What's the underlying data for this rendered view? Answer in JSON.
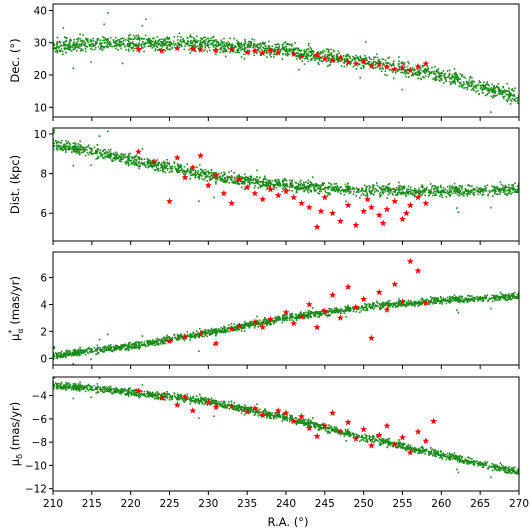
{
  "chart_data": [
    {
      "type": "scatter",
      "ylabel": "Dec. (°)",
      "ylim": [
        7,
        42
      ],
      "yticks": [
        10,
        20,
        30,
        40
      ],
      "xlim": [
        210,
        270
      ],
      "band": {
        "x": [
          210,
          220,
          230,
          240,
          250,
          260,
          270
        ],
        "y": [
          29,
          30,
          29.5,
          27.5,
          24,
          20,
          13
        ],
        "spread": 1.6
      },
      "stars": {
        "x": [
          221,
          224,
          226,
          228,
          229,
          231,
          233,
          235,
          236,
          237,
          238,
          239,
          241,
          242,
          244,
          245,
          246,
          247,
          248,
          249,
          250,
          251,
          252,
          253,
          254,
          255,
          256,
          257,
          258
        ],
        "y": [
          28,
          27.5,
          28.3,
          28,
          27.8,
          27.6,
          27.9,
          27,
          27.4,
          26.8,
          27.5,
          26.9,
          26.5,
          25.8,
          26.2,
          25,
          24.5,
          25.3,
          24,
          23.5,
          24.2,
          22.8,
          23.4,
          22.5,
          21.8,
          22.2,
          21.5,
          22.6,
          23.5
        ]
      }
    },
    {
      "type": "scatter",
      "ylabel": "Dist. (kpc)",
      "ylim": [
        4.6,
        10.3
      ],
      "yticks": [
        6,
        8,
        10
      ],
      "xlim": [
        210,
        270
      ],
      "band": {
        "x": [
          210,
          220,
          230,
          240,
          250,
          260,
          270
        ],
        "y": [
          9.5,
          8.7,
          7.9,
          7.4,
          7.15,
          7.1,
          7.2
        ],
        "spread": 0.2
      },
      "stars": {
        "x": [
          221,
          223,
          225,
          226,
          227,
          228,
          229,
          230,
          231,
          232,
          233,
          234,
          235,
          236,
          237,
          238,
          239,
          240,
          241,
          242,
          243,
          244,
          244.5,
          245,
          246,
          247,
          248,
          249,
          250,
          250.5,
          251,
          252,
          252.5,
          253,
          254,
          255,
          255.5,
          256,
          257,
          258
        ],
        "y": [
          9.1,
          8.6,
          6.6,
          8.8,
          7.8,
          8.3,
          8.9,
          7.4,
          7.9,
          7.0,
          6.5,
          7.7,
          7.3,
          7.0,
          6.7,
          7.2,
          6.9,
          7.1,
          6.8,
          6.5,
          6.3,
          5.3,
          6.1,
          6.8,
          6.0,
          5.6,
          6.4,
          5.4,
          6.1,
          6.7,
          6.3,
          5.9,
          5.5,
          6.2,
          6.6,
          5.7,
          6.0,
          6.4,
          6.8,
          6.5
        ]
      }
    },
    {
      "type": "scatter",
      "ylabel": "μ*α (mas/yr)",
      "ylabel_main": "μ",
      "ylabel_sub": "α",
      "ylabel_sup": "*",
      "ylabel_unit": " (mas/yr)",
      "ylim": [
        -0.5,
        7.9
      ],
      "yticks": [
        0,
        2,
        4,
        6
      ],
      "xlim": [
        210,
        270
      ],
      "band": {
        "x": [
          210,
          220,
          230,
          240,
          250,
          260,
          270
        ],
        "y": [
          0.2,
          0.9,
          1.9,
          3.0,
          3.8,
          4.3,
          4.6
        ],
        "spread": 0.18
      },
      "stars": {
        "x": [
          225,
          227,
          229,
          231,
          233,
          234,
          236,
          237,
          238,
          240,
          241,
          242,
          243,
          244,
          245,
          246,
          247,
          248,
          249,
          250,
          251,
          252,
          253,
          254,
          255,
          256,
          257,
          258
        ],
        "y": [
          1.3,
          1.6,
          1.8,
          1.1,
          2.2,
          2.4,
          2.7,
          2.3,
          2.9,
          3.4,
          2.6,
          3.1,
          4.0,
          2.3,
          3.5,
          4.7,
          3.0,
          5.3,
          3.8,
          4.4,
          1.5,
          4.9,
          3.6,
          5.5,
          4.2,
          7.2,
          6.5,
          4.1
        ]
      }
    },
    {
      "type": "scatter",
      "ylabel": "μδ (mas/yr)",
      "ylabel_main": "μ",
      "ylabel_sub": "δ",
      "ylabel_unit": " (mas/yr)",
      "xlabel": "R.A. (°)",
      "xticks": [
        210,
        215,
        220,
        225,
        230,
        235,
        240,
        245,
        250,
        255,
        260,
        265,
        270
      ],
      "ylim": [
        -12.2,
        -2.4
      ],
      "yticks": [
        -12,
        -10,
        -8,
        -6,
        -4
      ],
      "xlim": [
        210,
        270
      ],
      "band": {
        "x": [
          210,
          220,
          230,
          240,
          250,
          260,
          270
        ],
        "y": [
          -3.1,
          -3.7,
          -4.5,
          -5.9,
          -7.6,
          -9.1,
          -10.6
        ],
        "spread": 0.22
      },
      "stars": {
        "x": [
          221,
          224,
          226,
          227,
          228,
          230,
          231,
          233,
          235,
          236,
          237,
          239,
          240,
          241,
          242,
          243,
          244,
          245,
          246,
          247,
          248,
          249,
          250,
          251,
          252,
          253,
          254,
          255,
          256,
          257,
          258,
          259
        ],
        "y": [
          -3.6,
          -4.2,
          -4.8,
          -4.1,
          -5.3,
          -4.6,
          -5.0,
          -4.9,
          -5.4,
          -5.1,
          -5.7,
          -5.3,
          -5.5,
          -6.2,
          -5.8,
          -6.8,
          -7.5,
          -6.6,
          -5.5,
          -7.1,
          -6.3,
          -7.7,
          -6.9,
          -8.3,
          -7.4,
          -6.6,
          -8.2,
          -7.6,
          -8.9,
          -7.1,
          -7.9,
          -6.2
        ]
      }
    }
  ],
  "colors": {
    "green_points": "#1a8a1a",
    "red_stars": "#ff0000"
  }
}
